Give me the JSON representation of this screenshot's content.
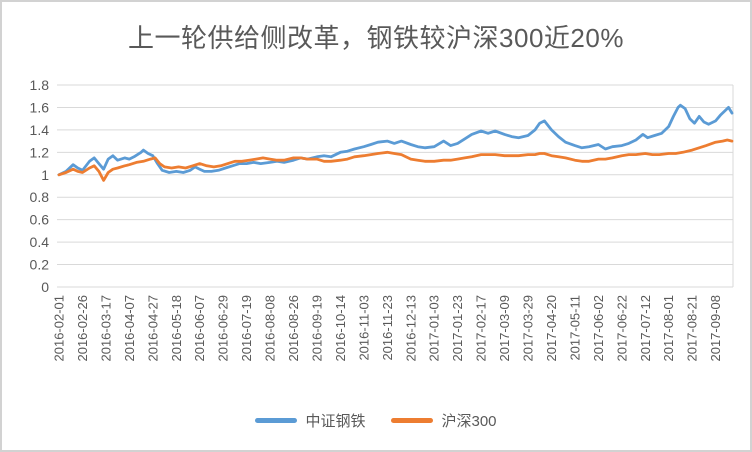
{
  "colors": {
    "text": "#595959",
    "grid": "#D9D9D9",
    "frame": "#D2D2D2"
  },
  "chart_data": {
    "type": "line",
    "title": "上一轮供给侧改革，钢铁较沪深300近20%",
    "xlabel": "",
    "ylabel": "",
    "ylim": [
      0,
      1.8
    ],
    "grid": true,
    "legend_position": "bottom",
    "y_ticks": [
      {
        "label": "1.8",
        "value": 1.8
      },
      {
        "label": "1.6",
        "value": 1.6
      },
      {
        "label": "1.4",
        "value": 1.4
      },
      {
        "label": "1.2",
        "value": 1.2
      },
      {
        "label": "1",
        "value": 1.0
      },
      {
        "label": "0.8",
        "value": 0.8
      },
      {
        "label": "0.6",
        "value": 0.6
      },
      {
        "label": "0.4",
        "value": 0.4
      },
      {
        "label": "0.2",
        "value": 0.2
      },
      {
        "label": "0",
        "value": 0.0
      }
    ],
    "x_tick_labels": [
      "2016-02-01",
      "2016-02-26",
      "2016-03-17",
      "2016-04-07",
      "2016-04-27",
      "2016-05-18",
      "2016-06-07",
      "2016-06-29",
      "2016-07-19",
      "2016-08-08",
      "2016-08-26",
      "2016-09-19",
      "2016-10-14",
      "2016-11-03",
      "2016-11-23",
      "2016-12-13",
      "2017-01-03",
      "2017-01-23",
      "2017-02-17",
      "2017-03-09",
      "2017-03-29",
      "2017-04-20",
      "2017-05-11",
      "2017-06-02",
      "2017-06-22",
      "2017-07-12",
      "2017-08-01",
      "2017-08-21",
      "2017-09-08"
    ],
    "series": [
      {
        "name": "中证钢铁",
        "color": "#5B9BD5",
        "points": [
          [
            0,
            1.0
          ],
          [
            0.3,
            1.03
          ],
          [
            0.6,
            1.09
          ],
          [
            0.8,
            1.06
          ],
          [
            1.0,
            1.04
          ],
          [
            1.3,
            1.12
          ],
          [
            1.5,
            1.15
          ],
          [
            1.7,
            1.1
          ],
          [
            1.9,
            1.05
          ],
          [
            2.1,
            1.14
          ],
          [
            2.3,
            1.17
          ],
          [
            2.5,
            1.13
          ],
          [
            2.8,
            1.15
          ],
          [
            3.0,
            1.14
          ],
          [
            3.2,
            1.16
          ],
          [
            3.5,
            1.2
          ],
          [
            3.6,
            1.22
          ],
          [
            3.8,
            1.19
          ],
          [
            4.0,
            1.17
          ],
          [
            4.2,
            1.1
          ],
          [
            4.4,
            1.04
          ],
          [
            4.7,
            1.02
          ],
          [
            5.0,
            1.03
          ],
          [
            5.3,
            1.02
          ],
          [
            5.6,
            1.04
          ],
          [
            5.8,
            1.07
          ],
          [
            6.0,
            1.05
          ],
          [
            6.2,
            1.03
          ],
          [
            6.5,
            1.03
          ],
          [
            6.8,
            1.04
          ],
          [
            7.1,
            1.06
          ],
          [
            7.4,
            1.08
          ],
          [
            7.7,
            1.1
          ],
          [
            8.0,
            1.1
          ],
          [
            8.3,
            1.11
          ],
          [
            8.6,
            1.1
          ],
          [
            9.0,
            1.11
          ],
          [
            9.3,
            1.12
          ],
          [
            9.6,
            1.11
          ],
          [
            10.0,
            1.13
          ],
          [
            10.3,
            1.15
          ],
          [
            10.6,
            1.14
          ],
          [
            11.0,
            1.16
          ],
          [
            11.3,
            1.17
          ],
          [
            11.6,
            1.16
          ],
          [
            12.0,
            1.2
          ],
          [
            12.3,
            1.21
          ],
          [
            12.6,
            1.23
          ],
          [
            13.0,
            1.25
          ],
          [
            13.3,
            1.27
          ],
          [
            13.6,
            1.29
          ],
          [
            14.0,
            1.3
          ],
          [
            14.3,
            1.28
          ],
          [
            14.6,
            1.3
          ],
          [
            15.0,
            1.27
          ],
          [
            15.3,
            1.25
          ],
          [
            15.6,
            1.24
          ],
          [
            16.0,
            1.25
          ],
          [
            16.4,
            1.3
          ],
          [
            16.7,
            1.26
          ],
          [
            17.0,
            1.28
          ],
          [
            17.3,
            1.32
          ],
          [
            17.6,
            1.36
          ],
          [
            18.0,
            1.39
          ],
          [
            18.3,
            1.37
          ],
          [
            18.6,
            1.39
          ],
          [
            19.0,
            1.36
          ],
          [
            19.3,
            1.34
          ],
          [
            19.6,
            1.33
          ],
          [
            20.0,
            1.35
          ],
          [
            20.3,
            1.4
          ],
          [
            20.5,
            1.46
          ],
          [
            20.7,
            1.48
          ],
          [
            21.0,
            1.4
          ],
          [
            21.3,
            1.34
          ],
          [
            21.6,
            1.29
          ],
          [
            22.0,
            1.26
          ],
          [
            22.3,
            1.24
          ],
          [
            22.6,
            1.25
          ],
          [
            23.0,
            1.27
          ],
          [
            23.3,
            1.23
          ],
          [
            23.6,
            1.25
          ],
          [
            24.0,
            1.26
          ],
          [
            24.3,
            1.28
          ],
          [
            24.6,
            1.31
          ],
          [
            24.9,
            1.36
          ],
          [
            25.1,
            1.33
          ],
          [
            25.4,
            1.35
          ],
          [
            25.7,
            1.37
          ],
          [
            26.0,
            1.43
          ],
          [
            26.2,
            1.52
          ],
          [
            26.4,
            1.6
          ],
          [
            26.5,
            1.62
          ],
          [
            26.7,
            1.59
          ],
          [
            26.9,
            1.5
          ],
          [
            27.1,
            1.46
          ],
          [
            27.3,
            1.52
          ],
          [
            27.5,
            1.47
          ],
          [
            27.7,
            1.45
          ],
          [
            28.0,
            1.48
          ],
          [
            28.2,
            1.53
          ],
          [
            28.4,
            1.57
          ],
          [
            28.55,
            1.6
          ],
          [
            28.7,
            1.55
          ]
        ]
      },
      {
        "name": "沪深300",
        "color": "#ED7D31",
        "points": [
          [
            0,
            1.0
          ],
          [
            0.3,
            1.02
          ],
          [
            0.6,
            1.05
          ],
          [
            0.8,
            1.03
          ],
          [
            1.0,
            1.02
          ],
          [
            1.3,
            1.06
          ],
          [
            1.5,
            1.08
          ],
          [
            1.7,
            1.03
          ],
          [
            1.9,
            0.95
          ],
          [
            2.1,
            1.02
          ],
          [
            2.3,
            1.05
          ],
          [
            2.5,
            1.06
          ],
          [
            2.8,
            1.08
          ],
          [
            3.0,
            1.09
          ],
          [
            3.3,
            1.11
          ],
          [
            3.6,
            1.12
          ],
          [
            3.9,
            1.14
          ],
          [
            4.1,
            1.15
          ],
          [
            4.3,
            1.1
          ],
          [
            4.5,
            1.07
          ],
          [
            4.8,
            1.06
          ],
          [
            5.1,
            1.07
          ],
          [
            5.4,
            1.06
          ],
          [
            5.7,
            1.08
          ],
          [
            6.0,
            1.1
          ],
          [
            6.3,
            1.08
          ],
          [
            6.6,
            1.07
          ],
          [
            6.9,
            1.08
          ],
          [
            7.2,
            1.1
          ],
          [
            7.5,
            1.12
          ],
          [
            7.8,
            1.12
          ],
          [
            8.1,
            1.13
          ],
          [
            8.4,
            1.14
          ],
          [
            8.7,
            1.15
          ],
          [
            9.0,
            1.14
          ],
          [
            9.3,
            1.13
          ],
          [
            9.6,
            1.13
          ],
          [
            10.0,
            1.15
          ],
          [
            10.3,
            1.15
          ],
          [
            10.6,
            1.14
          ],
          [
            11.0,
            1.14
          ],
          [
            11.3,
            1.12
          ],
          [
            11.6,
            1.12
          ],
          [
            12.0,
            1.13
          ],
          [
            12.3,
            1.14
          ],
          [
            12.6,
            1.16
          ],
          [
            13.0,
            1.17
          ],
          [
            13.3,
            1.18
          ],
          [
            13.6,
            1.19
          ],
          [
            14.0,
            1.2
          ],
          [
            14.3,
            1.19
          ],
          [
            14.6,
            1.18
          ],
          [
            15.0,
            1.14
          ],
          [
            15.3,
            1.13
          ],
          [
            15.6,
            1.12
          ],
          [
            16.0,
            1.12
          ],
          [
            16.4,
            1.13
          ],
          [
            16.7,
            1.13
          ],
          [
            17.0,
            1.14
          ],
          [
            17.3,
            1.15
          ],
          [
            17.6,
            1.16
          ],
          [
            18.0,
            1.18
          ],
          [
            18.3,
            1.18
          ],
          [
            18.6,
            1.18
          ],
          [
            19.0,
            1.17
          ],
          [
            19.3,
            1.17
          ],
          [
            19.6,
            1.17
          ],
          [
            20.0,
            1.18
          ],
          [
            20.3,
            1.18
          ],
          [
            20.5,
            1.19
          ],
          [
            20.7,
            1.19
          ],
          [
            21.0,
            1.17
          ],
          [
            21.3,
            1.16
          ],
          [
            21.6,
            1.15
          ],
          [
            22.0,
            1.13
          ],
          [
            22.3,
            1.12
          ],
          [
            22.6,
            1.12
          ],
          [
            23.0,
            1.14
          ],
          [
            23.3,
            1.14
          ],
          [
            23.6,
            1.15
          ],
          [
            24.0,
            1.17
          ],
          [
            24.3,
            1.18
          ],
          [
            24.6,
            1.18
          ],
          [
            25.0,
            1.19
          ],
          [
            25.3,
            1.18
          ],
          [
            25.6,
            1.18
          ],
          [
            26.0,
            1.19
          ],
          [
            26.3,
            1.19
          ],
          [
            26.6,
            1.2
          ],
          [
            27.0,
            1.22
          ],
          [
            27.3,
            1.24
          ],
          [
            27.6,
            1.26
          ],
          [
            28.0,
            1.29
          ],
          [
            28.3,
            1.3
          ],
          [
            28.5,
            1.31
          ],
          [
            28.7,
            1.3
          ]
        ]
      }
    ]
  }
}
